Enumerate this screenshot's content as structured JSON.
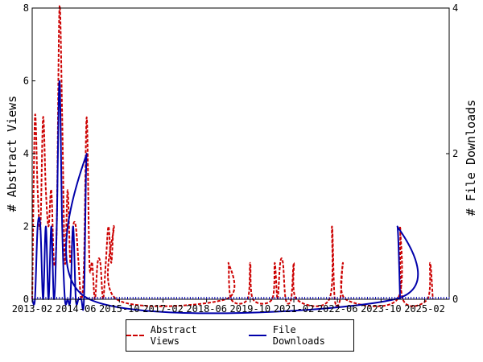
{
  "chart_data": {
    "type": "line",
    "x_ticks": [
      "2013-02",
      "2014-06",
      "2015-10",
      "2017-02",
      "2018-06",
      "2019-10",
      "2021-02",
      "2022-06",
      "2023-10",
      "2025-02"
    ],
    "x_range": [
      "2013-02",
      "2025-11"
    ],
    "y_left": {
      "label": "# Abstract Views",
      "ticks": [
        0,
        2,
        4,
        6,
        8
      ],
      "range": [
        0,
        8
      ]
    },
    "y_right": {
      "label": "# File Downloads",
      "ticks": [
        0,
        2,
        4
      ],
      "range": [
        0,
        4
      ]
    },
    "legend_position": "bottom",
    "series": [
      {
        "name": "Abstract Views",
        "axis": "left",
        "color": "#cc0000",
        "style": "dashed",
        "points": [
          [
            "2013-02",
            0
          ],
          [
            "2013-03",
            5
          ],
          [
            "2013-04",
            3
          ],
          [
            "2013-05",
            2
          ],
          [
            "2013-06",
            5
          ],
          [
            "2013-07",
            3
          ],
          [
            "2013-08",
            2
          ],
          [
            "2013-09",
            3
          ],
          [
            "2013-10",
            1
          ],
          [
            "2013-11",
            2
          ],
          [
            "2013-12",
            8
          ],
          [
            "2014-01",
            5
          ],
          [
            "2014-02",
            1
          ],
          [
            "2014-03",
            3
          ],
          [
            "2014-04",
            1
          ],
          [
            "2014-05",
            2
          ],
          [
            "2014-06",
            2
          ],
          [
            "2014-07",
            1
          ],
          [
            "2014-08",
            0
          ],
          [
            "2014-09",
            1
          ],
          [
            "2014-10",
            5
          ],
          [
            "2014-11",
            1
          ],
          [
            "2014-12",
            1
          ],
          [
            "2015-01",
            0
          ],
          [
            "2015-02",
            1
          ],
          [
            "2015-03",
            1
          ],
          [
            "2015-04",
            0
          ],
          [
            "2015-05",
            1
          ],
          [
            "2015-06",
            2
          ],
          [
            "2015-07",
            1
          ],
          [
            "2015-08",
            2
          ],
          [
            "2015-09",
            0
          ],
          [
            "2019-01",
            0
          ],
          [
            "2019-02",
            1
          ],
          [
            "2019-03",
            0
          ],
          [
            "2019-09",
            0
          ],
          [
            "2019-10",
            1
          ],
          [
            "2019-11",
            0
          ],
          [
            "2020-06",
            0
          ],
          [
            "2020-07",
            1
          ],
          [
            "2020-08",
            0
          ],
          [
            "2020-09",
            1
          ],
          [
            "2020-10",
            1
          ],
          [
            "2020-11",
            0
          ],
          [
            "2021-01",
            0
          ],
          [
            "2021-02",
            1
          ],
          [
            "2021-03",
            0
          ],
          [
            "2022-03",
            0
          ],
          [
            "2022-04",
            2
          ],
          [
            "2022-05",
            0
          ],
          [
            "2022-07",
            0
          ],
          [
            "2022-08",
            1
          ],
          [
            "2022-09",
            0
          ],
          [
            "2024-04",
            0
          ],
          [
            "2024-05",
            2
          ],
          [
            "2024-06",
            0
          ],
          [
            "2025-03",
            0
          ],
          [
            "2025-04",
            1
          ],
          [
            "2025-05",
            0
          ]
        ]
      },
      {
        "name": "File Downloads",
        "axis": "right",
        "color": "#0000aa",
        "style": "solid",
        "points": [
          [
            "2013-02",
            0
          ],
          [
            "2013-03",
            0
          ],
          [
            "2013-04",
            1
          ],
          [
            "2013-05",
            1
          ],
          [
            "2013-06",
            0
          ],
          [
            "2013-07",
            1
          ],
          [
            "2013-08",
            0
          ],
          [
            "2013-09",
            1
          ],
          [
            "2013-10",
            0
          ],
          [
            "2013-11",
            1
          ],
          [
            "2013-12",
            3
          ],
          [
            "2014-01",
            1
          ],
          [
            "2014-02",
            0
          ],
          [
            "2014-03",
            0
          ],
          [
            "2014-04",
            0
          ],
          [
            "2014-05",
            1
          ],
          [
            "2014-06",
            0
          ],
          [
            "2014-07",
            0
          ],
          [
            "2014-08",
            0
          ],
          [
            "2014-09",
            0
          ],
          [
            "2014-10",
            2
          ],
          [
            "2014-11",
            0
          ],
          [
            "2024-03",
            0
          ],
          [
            "2024-04",
            1
          ],
          [
            "2024-05",
            0
          ]
        ]
      }
    ]
  }
}
